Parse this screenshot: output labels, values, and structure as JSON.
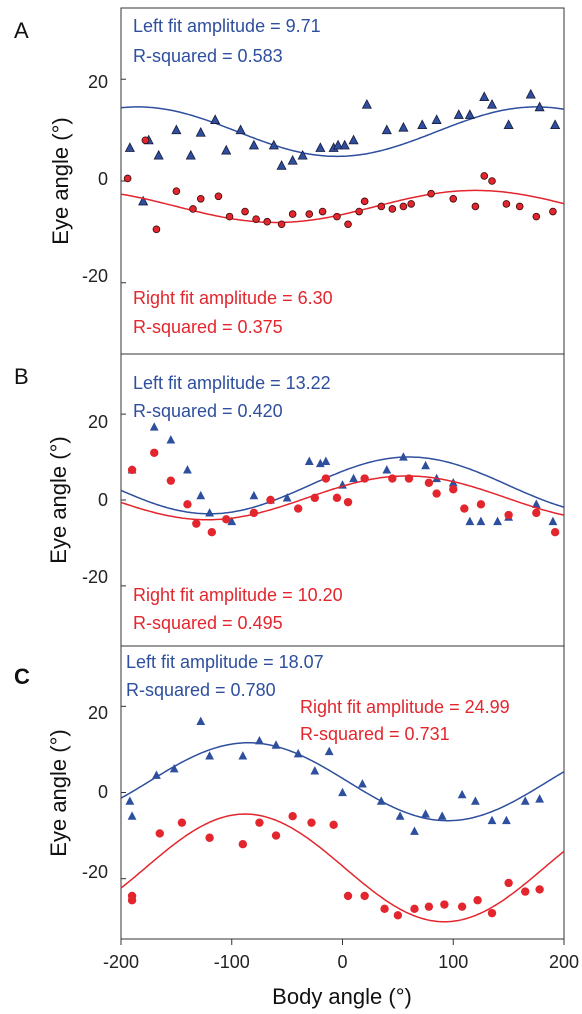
{
  "colors": {
    "left": "#2e4f9e",
    "right": "#e3262e",
    "axis": "#333333"
  },
  "xaxis": {
    "label": "Body angle (°)",
    "ticks": [
      "-200",
      "-100",
      "0",
      "100",
      "200"
    ]
  },
  "chart_data": [
    {
      "panel": "A",
      "type": "scatter",
      "ylabel": "Eye angle (°)",
      "xlim": [
        -200,
        200
      ],
      "ylim": [
        -34,
        34
      ],
      "yticks": [
        "20",
        "0",
        "-20"
      ],
      "annotations": {
        "left_amp": "Left fit amplitude = 9.71",
        "left_r2": "R-squared = 0.583",
        "right_amp": "Right fit amplitude = 6.30",
        "right_r2": "R-squared = 0.375"
      },
      "series": [
        {
          "side": "left",
          "marker": "triangle",
          "fit": {
            "mean": 9.7,
            "amp": 4.86,
            "center": 175
          },
          "points": [
            [
              -192,
              6.5
            ],
            [
              -180,
              -4
            ],
            [
              -175,
              8
            ],
            [
              -166,
              5
            ],
            [
              -150,
              10
            ],
            [
              -137,
              5
            ],
            [
              -128,
              9.5
            ],
            [
              -115,
              12
            ],
            [
              -105,
              6
            ],
            [
              -92,
              10
            ],
            [
              -80,
              7
            ],
            [
              -62,
              7
            ],
            [
              -55,
              3
            ],
            [
              -45,
              4
            ],
            [
              -36,
              5
            ],
            [
              -20,
              6.5
            ],
            [
              -8,
              6.5
            ],
            [
              -4,
              7
            ],
            [
              2,
              7
            ],
            [
              10,
              8
            ],
            [
              22,
              15
            ],
            [
              40,
              10
            ],
            [
              55,
              10.5
            ],
            [
              72,
              11
            ],
            [
              85,
              12
            ],
            [
              105,
              13
            ],
            [
              115,
              13
            ],
            [
              128,
              16.5
            ],
            [
              135,
              15
            ],
            [
              150,
              11
            ],
            [
              170,
              17
            ],
            [
              178,
              14.5
            ],
            [
              192,
              11
            ]
          ]
        },
        {
          "side": "right",
          "marker": "circle",
          "fit": {
            "mean": -5,
            "amp": 3.15,
            "center": 120
          },
          "points": [
            [
              -194,
              0.5
            ],
            [
              -178,
              8
            ],
            [
              -168,
              -9.5
            ],
            [
              -150,
              -2
            ],
            [
              -135,
              -5.5
            ],
            [
              -128,
              -3.5
            ],
            [
              -112,
              -3
            ],
            [
              -102,
              -7
            ],
            [
              -88,
              -6
            ],
            [
              -78,
              -7.5
            ],
            [
              -68,
              -8
            ],
            [
              -55,
              -8.5
            ],
            [
              -45,
              -6.5
            ],
            [
              -30,
              -6.5
            ],
            [
              -18,
              -6
            ],
            [
              -5,
              -7
            ],
            [
              5,
              -8.5
            ],
            [
              15,
              -6
            ],
            [
              20,
              -4
            ],
            [
              35,
              -5
            ],
            [
              45,
              -5.5
            ],
            [
              55,
              -5
            ],
            [
              62,
              -4.5
            ],
            [
              80,
              -2.5
            ],
            [
              100,
              -3.5
            ],
            [
              120,
              -5
            ],
            [
              128,
              1
            ],
            [
              135,
              0
            ],
            [
              148,
              -4.5
            ],
            [
              160,
              -5
            ],
            [
              175,
              -7
            ],
            [
              190,
              -6
            ]
          ]
        }
      ]
    },
    {
      "panel": "B",
      "type": "scatter",
      "ylabel": "Eye angle (°)",
      "xlim": [
        -200,
        200
      ],
      "ylim": [
        -34,
        34
      ],
      "yticks": [
        "20",
        "0",
        "-20"
      ],
      "annotations": {
        "left_amp": "Left fit amplitude = 13.22",
        "left_r2": "R-squared = 0.420",
        "right_amp": "Right fit amplitude = 10.20",
        "right_r2": "R-squared = 0.495"
      },
      "series": [
        {
          "side": "left",
          "marker": "triangle",
          "fit": {
            "mean": 3.4,
            "amp": 6.61,
            "center": 60
          },
          "points": [
            [
              -190,
              7
            ],
            [
              -170,
              17
            ],
            [
              -155,
              14
            ],
            [
              -140,
              7
            ],
            [
              -128,
              1
            ],
            [
              -120,
              -3
            ],
            [
              -100,
              -5
            ],
            [
              -80,
              1
            ],
            [
              -65,
              0
            ],
            [
              -50,
              0.5
            ],
            [
              -30,
              9
            ],
            [
              -20,
              8.5
            ],
            [
              -15,
              9
            ],
            [
              0,
              3.5
            ],
            [
              10,
              5
            ],
            [
              40,
              7
            ],
            [
              55,
              10
            ],
            [
              75,
              8
            ],
            [
              85,
              5
            ],
            [
              100,
              4
            ],
            [
              115,
              -5
            ],
            [
              125,
              -5
            ],
            [
              140,
              -5
            ],
            [
              150,
              -4
            ],
            [
              175,
              -1
            ],
            [
              190,
              -5
            ]
          ]
        },
        {
          "side": "right",
          "marker": "circle",
          "fit": {
            "mean": 0.5,
            "amp": 5.1,
            "center": 58
          },
          "points": [
            [
              -190,
              7
            ],
            [
              -170,
              11
            ],
            [
              -155,
              4.5
            ],
            [
              -140,
              -1
            ],
            [
              -132,
              -5.5
            ],
            [
              -118,
              -7.5
            ],
            [
              -105,
              -4.5
            ],
            [
              -80,
              -3
            ],
            [
              -65,
              0
            ],
            [
              -40,
              -2
            ],
            [
              -25,
              0.5
            ],
            [
              -15,
              5
            ],
            [
              -5,
              0.5
            ],
            [
              5,
              -0.5
            ],
            [
              20,
              5
            ],
            [
              45,
              5
            ],
            [
              60,
              5
            ],
            [
              78,
              4
            ],
            [
              85,
              1.5
            ],
            [
              100,
              2.5
            ],
            [
              110,
              -2
            ],
            [
              125,
              -1
            ],
            [
              150,
              -3.5
            ],
            [
              175,
              -3
            ],
            [
              192,
              -7.5
            ]
          ]
        }
      ]
    },
    {
      "panel": "C",
      "type": "scatter",
      "ylabel": "Eye angle (°)",
      "xlim": [
        -200,
        200
      ],
      "ylim": [
        -34,
        34
      ],
      "yticks": [
        "20",
        "0",
        "-20"
      ],
      "annotations": {
        "left_amp": "Left fit amplitude = 18.07",
        "left_r2": "R-squared = 0.780",
        "right_amp": "Right fit amplitude = 24.99",
        "right_r2": "R-squared = 0.731"
      },
      "series": [
        {
          "side": "left",
          "marker": "triangle",
          "fit": {
            "mean": 2.5,
            "amp": 9.04,
            "center": -85
          },
          "points": [
            [
              -192,
              -2
            ],
            [
              -190,
              -5.5
            ],
            [
              -168,
              4
            ],
            [
              -152,
              5.5
            ],
            [
              -128,
              16.5
            ],
            [
              -120,
              8.5
            ],
            [
              -90,
              8.5
            ],
            [
              -75,
              12
            ],
            [
              -60,
              11
            ],
            [
              -40,
              9
            ],
            [
              -25,
              5
            ],
            [
              -12,
              9.5
            ],
            [
              0,
              0
            ],
            [
              18,
              2
            ],
            [
              35,
              -2
            ],
            [
              52,
              -5.5
            ],
            [
              65,
              -9
            ],
            [
              75,
              -5
            ],
            [
              90,
              -5.5
            ],
            [
              108,
              -0.5
            ],
            [
              120,
              -2
            ],
            [
              135,
              -6.5
            ],
            [
              148,
              -6.5
            ],
            [
              165,
              -2
            ],
            [
              178,
              -1.5
            ]
          ]
        },
        {
          "side": "right",
          "marker": "circle",
          "fit": {
            "mean": -17.5,
            "amp": 12.5,
            "center": -88
          },
          "points": [
            [
              -190,
              -24
            ],
            [
              -190,
              -25
            ],
            [
              -165,
              -9.5
            ],
            [
              -145,
              -7
            ],
            [
              -120,
              -10.5
            ],
            [
              -90,
              -12
            ],
            [
              -75,
              -7
            ],
            [
              -60,
              -10
            ],
            [
              -45,
              -5.5
            ],
            [
              -28,
              -7
            ],
            [
              -8,
              -7.5
            ],
            [
              5,
              -24
            ],
            [
              20,
              -24
            ],
            [
              38,
              -27
            ],
            [
              50,
              -28.5
            ],
            [
              65,
              -27
            ],
            [
              78,
              -26.5
            ],
            [
              92,
              -26
            ],
            [
              108,
              -26.5
            ],
            [
              122,
              -25
            ],
            [
              135,
              -28
            ],
            [
              150,
              -21
            ],
            [
              165,
              -23
            ],
            [
              178,
              -22.5
            ]
          ]
        }
      ]
    }
  ]
}
